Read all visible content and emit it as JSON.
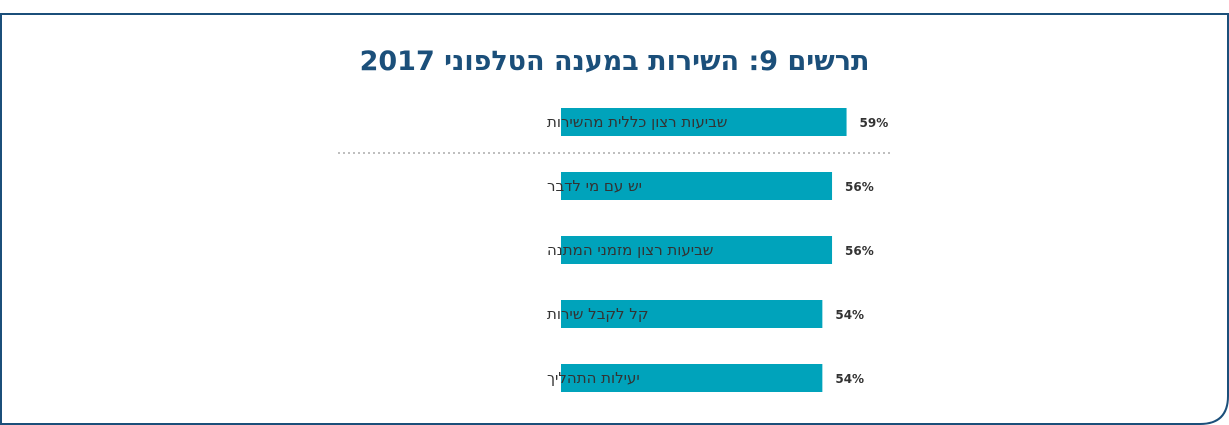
{
  "chart_data": {
    "type": "bar",
    "orientation": "horizontal",
    "title": "תרשים 9: השירות במענה הטלפוני 2017",
    "categories": [
      "שביעות רצון כללית מהשירות",
      "יש עם מי לדבר",
      "שביעות רצון מזמני המתנה",
      "קל לקבל שירות",
      "יעילות התהליך"
    ],
    "values": [
      59,
      56,
      56,
      54,
      54
    ],
    "value_labels": [
      "59%",
      "56%",
      "56%",
      "54%",
      "54%"
    ],
    "xlim": [
      0,
      100
    ],
    "grid": false,
    "legend": "none",
    "separator_after_first": true,
    "colors": {
      "bar": "#00a3bb",
      "title": "#1b4f7a",
      "frame": "#1b4f7a",
      "separator": "#aaaaaa"
    }
  }
}
